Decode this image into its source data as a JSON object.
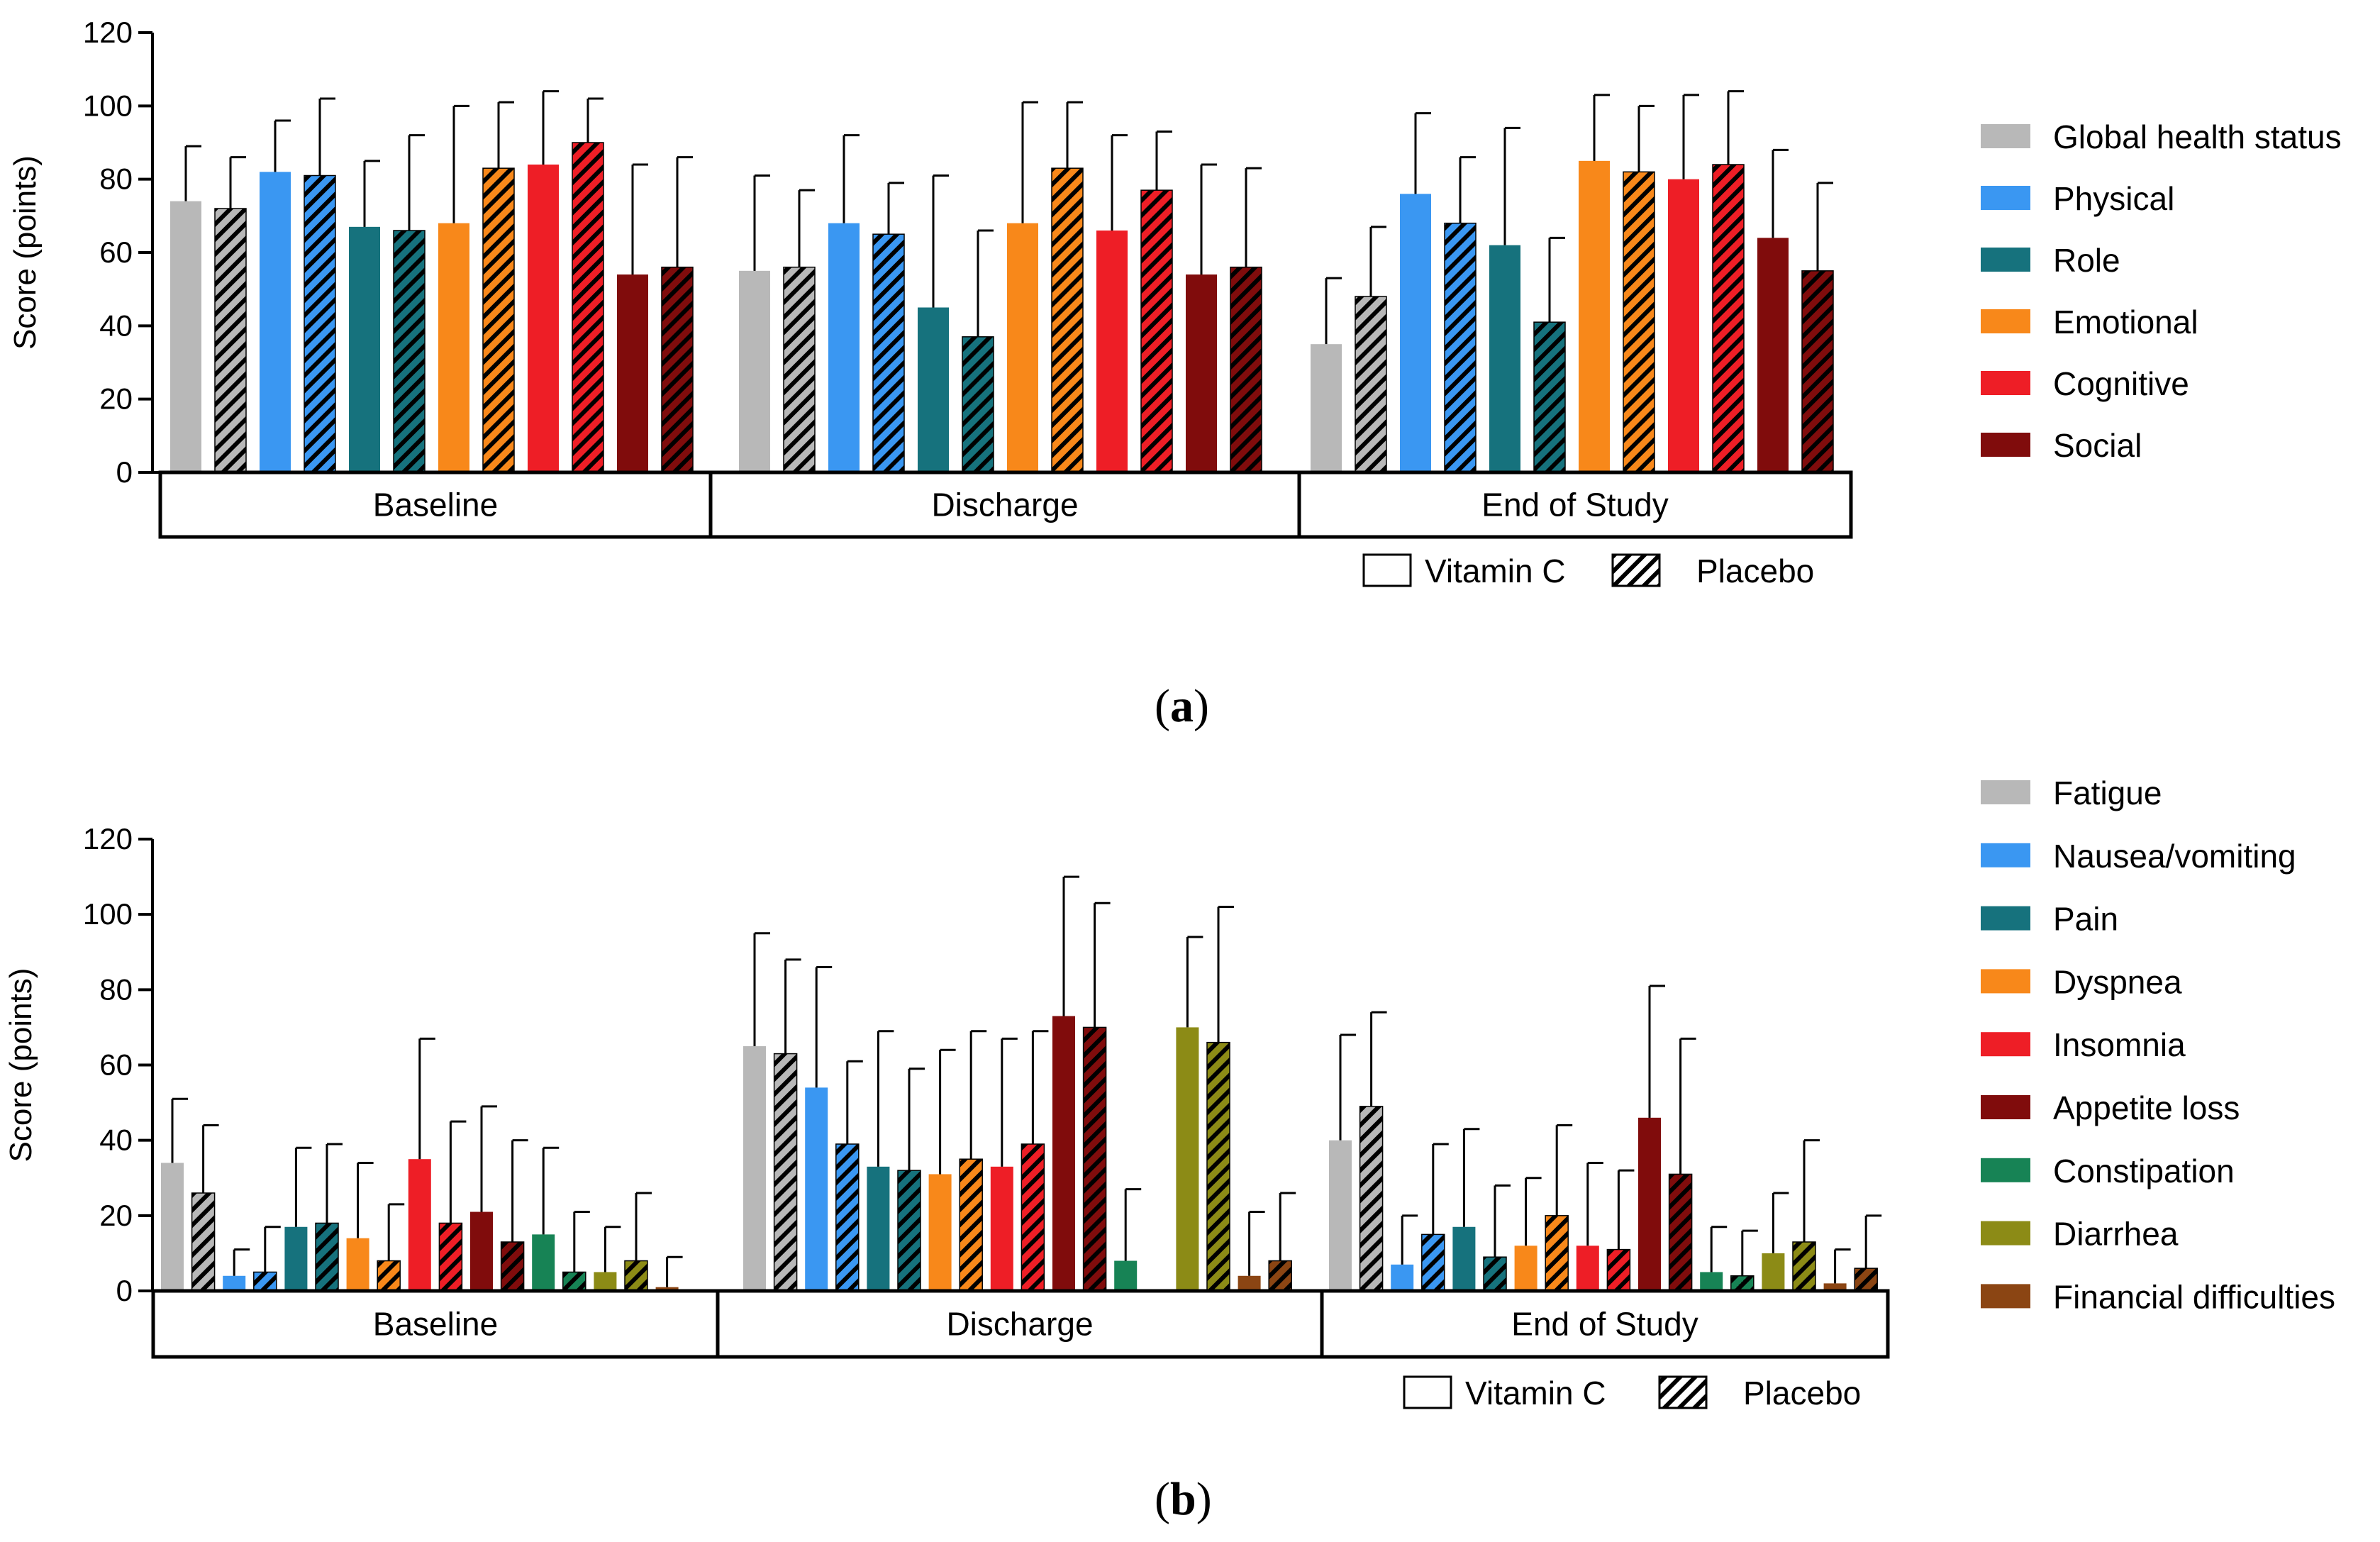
{
  "colors": {
    "gray": "#B8B8B8",
    "blue": "#3A97F2",
    "teal": "#16727D",
    "orange": "#F8881A",
    "red": "#EE1E26",
    "darkred": "#800C0C",
    "green": "#178355",
    "olive": "#8C8B16",
    "brown": "#8B4513",
    "axis": "#000000"
  },
  "figure": {
    "caption_a_open": "(",
    "caption_a_letter": "a",
    "caption_a_close": ")",
    "caption_b_open": "(",
    "caption_b_letter": "b",
    "caption_b_close": ")"
  },
  "chart_data": [
    {
      "type": "bar",
      "panel": "a",
      "ylabel": "Score (points)",
      "ylim": [
        0,
        120
      ],
      "yticks": [
        0,
        20,
        40,
        60,
        80,
        100,
        120
      ],
      "groups": [
        "Baseline",
        "Discharge",
        "End of Study"
      ],
      "pattern_legend": {
        "vitamin_c": "Vitamin C",
        "placebo": "Placebo"
      },
      "series": [
        {
          "name": "Global health status",
          "color": "gray",
          "vitamin_c": [
            74,
            55,
            35
          ],
          "vitamin_c_err": [
            15,
            26,
            18
          ],
          "placebo": [
            72,
            56,
            48
          ],
          "placebo_err": [
            14,
            21,
            19
          ]
        },
        {
          "name": "Physical",
          "color": "blue",
          "vitamin_c": [
            82,
            68,
            76
          ],
          "vitamin_c_err": [
            14,
            24,
            22
          ],
          "placebo": [
            81,
            65,
            68
          ],
          "placebo_err": [
            21,
            14,
            18
          ]
        },
        {
          "name": "Role",
          "color": "teal",
          "vitamin_c": [
            67,
            45,
            62
          ],
          "vitamin_c_err": [
            18,
            36,
            32
          ],
          "placebo": [
            66,
            37,
            41
          ],
          "placebo_err": [
            26,
            29,
            23
          ]
        },
        {
          "name": "Emotional",
          "color": "orange",
          "vitamin_c": [
            68,
            68,
            85
          ],
          "vitamin_c_err": [
            32,
            33,
            18
          ],
          "placebo": [
            83,
            83,
            82
          ],
          "placebo_err": [
            18,
            18,
            18
          ]
        },
        {
          "name": "Cognitive",
          "color": "red",
          "vitamin_c": [
            84,
            66,
            80
          ],
          "vitamin_c_err": [
            20,
            26,
            23
          ],
          "placebo": [
            90,
            77,
            84
          ],
          "placebo_err": [
            12,
            16,
            20
          ]
        },
        {
          "name": "Social",
          "color": "darkred",
          "vitamin_c": [
            54,
            54,
            64
          ],
          "vitamin_c_err": [
            30,
            30,
            24
          ],
          "placebo": [
            56,
            56,
            55
          ],
          "placebo_err": [
            30,
            27,
            24
          ]
        }
      ]
    },
    {
      "type": "bar",
      "panel": "b",
      "ylabel": "Score (points)",
      "ylim": [
        0,
        120
      ],
      "yticks": [
        0,
        20,
        40,
        60,
        80,
        100,
        120
      ],
      "groups": [
        "Baseline",
        "Discharge",
        "End of Study"
      ],
      "pattern_legend": {
        "vitamin_c": "Vitamin C",
        "placebo": "Placebo"
      },
      "series": [
        {
          "name": "Fatigue",
          "color": "gray",
          "vitamin_c": [
            34,
            65,
            40
          ],
          "vitamin_c_err": [
            17,
            30,
            28
          ],
          "placebo": [
            26,
            63,
            49
          ],
          "placebo_err": [
            18,
            25,
            25
          ]
        },
        {
          "name": "Nausea/vomiting",
          "color": "blue",
          "vitamin_c": [
            4,
            54,
            7
          ],
          "vitamin_c_err": [
            7,
            32,
            13
          ],
          "placebo": [
            5,
            39,
            15
          ],
          "placebo_err": [
            12,
            22,
            24
          ]
        },
        {
          "name": "Pain",
          "color": "teal",
          "vitamin_c": [
            17,
            33,
            17
          ],
          "vitamin_c_err": [
            21,
            36,
            26
          ],
          "placebo": [
            18,
            32,
            9
          ],
          "placebo_err": [
            21,
            27,
            19
          ]
        },
        {
          "name": "Dyspnea",
          "color": "orange",
          "vitamin_c": [
            14,
            31,
            12
          ],
          "vitamin_c_err": [
            20,
            33,
            18
          ],
          "placebo": [
            8,
            35,
            20
          ],
          "placebo_err": [
            15,
            34,
            24
          ]
        },
        {
          "name": "Insomnia",
          "color": "red",
          "vitamin_c": [
            35,
            33,
            12
          ],
          "vitamin_c_err": [
            32,
            34,
            22
          ],
          "placebo": [
            18,
            39,
            11
          ],
          "placebo_err": [
            27,
            30,
            21
          ]
        },
        {
          "name": "Appetite loss",
          "color": "darkred",
          "vitamin_c": [
            21,
            73,
            46
          ],
          "vitamin_c_err": [
            28,
            37,
            35
          ],
          "placebo": [
            13,
            70,
            31
          ],
          "placebo_err": [
            27,
            33,
            36
          ]
        },
        {
          "name": "Constipation",
          "color": "green",
          "vitamin_c": [
            15,
            8,
            5
          ],
          "vitamin_c_err": [
            23,
            19,
            12
          ],
          "placebo": [
            5,
            0,
            4
          ],
          "placebo_err": [
            16,
            0,
            12
          ]
        },
        {
          "name": "Diarrhea",
          "color": "olive",
          "vitamin_c": [
            5,
            70,
            10
          ],
          "vitamin_c_err": [
            12,
            24,
            16
          ],
          "placebo": [
            8,
            66,
            13
          ],
          "placebo_err": [
            18,
            36,
            27
          ]
        },
        {
          "name": "Financial difficulties",
          "color": "brown",
          "vitamin_c": [
            1,
            4,
            2
          ],
          "vitamin_c_err": [
            8,
            17,
            9
          ],
          "placebo": [
            0,
            8,
            6
          ],
          "placebo_err": [
            0,
            18,
            14
          ]
        }
      ]
    }
  ]
}
